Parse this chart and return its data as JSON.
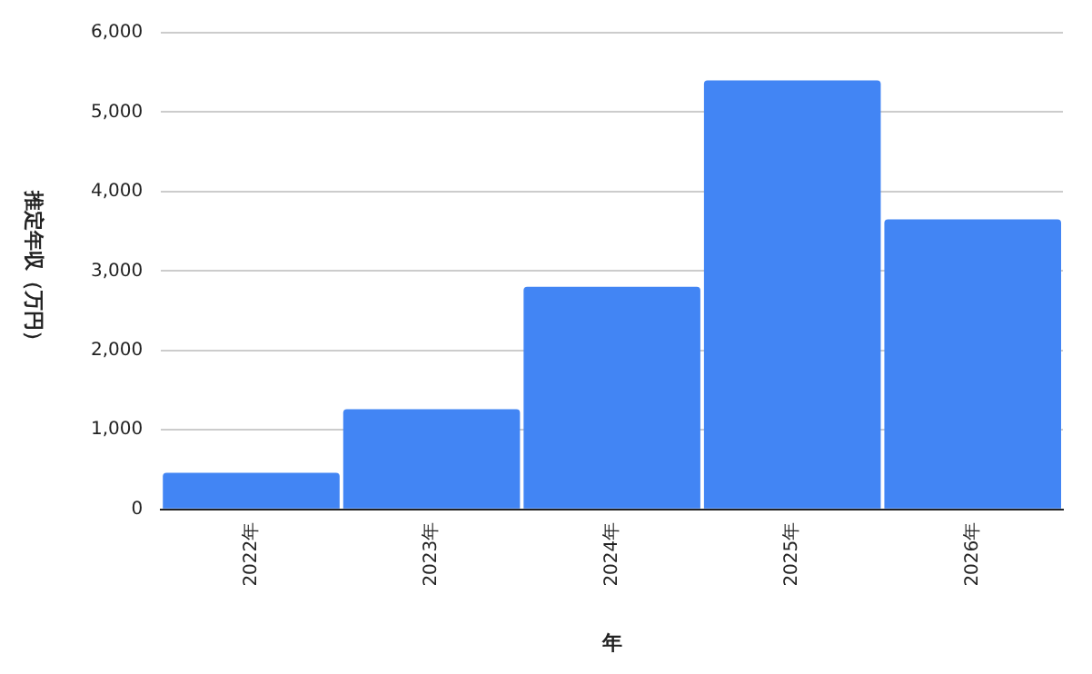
{
  "chart_data": {
    "type": "bar",
    "xlabel": "年",
    "ylabel": "推定年収（万円）",
    "categories": [
      "2022年",
      "2023年",
      "2024年",
      "2025年",
      "2026年"
    ],
    "values": [
      460,
      1260,
      2800,
      5400,
      3650
    ],
    "color": "#4285f4",
    "ylim": [
      0,
      6000
    ],
    "yticks": [
      0,
      {
        "value": 1000,
        "label": "1,000"
      },
      {
        "value": 2000,
        "label": "2,000"
      },
      {
        "value": 3000,
        "label": "3,000"
      },
      {
        "value": 4000,
        "label": "4,000"
      },
      {
        "value": 5000,
        "label": "5,000"
      },
      {
        "value": 6000,
        "label": "6,000"
      }
    ],
    "grid": "y",
    "legend": false
  }
}
